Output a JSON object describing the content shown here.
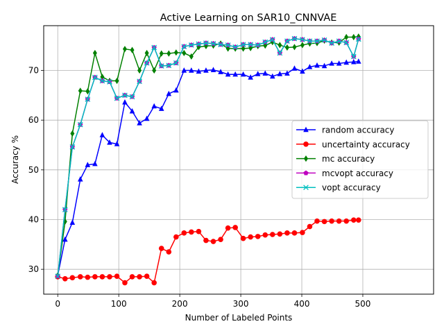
{
  "chart_data": {
    "type": "line",
    "title": "Active Learning on SAR10_CNNVAE",
    "xlabel": "Number of Labeled Points",
    "ylabel": "Accuracy %",
    "xlim": [
      -23,
      616
    ],
    "ylim": [
      25,
      79
    ],
    "xticks": [
      0,
      100,
      200,
      300,
      400,
      500
    ],
    "yticks": [
      30,
      40,
      50,
      60,
      70
    ],
    "grid": true,
    "legend_position": "center-right",
    "x": [
      0,
      12,
      24,
      37,
      49,
      61,
      73,
      85,
      97,
      110,
      122,
      134,
      146,
      158,
      170,
      182,
      194,
      207,
      219,
      231,
      243,
      255,
      267,
      279,
      291,
      304,
      316,
      328,
      340,
      352,
      364,
      376,
      388,
      401,
      413,
      425,
      437,
      449,
      461,
      473,
      485,
      493
    ],
    "series": [
      {
        "name": "random accuracy",
        "color": "#0000ff",
        "marker": "triangle",
        "values": [
          28.8,
          36.0,
          39.4,
          48.1,
          51.0,
          51.2,
          57.0,
          55.5,
          55.2,
          63.6,
          61.8,
          59.4,
          60.3,
          62.8,
          62.3,
          65.3,
          66.0,
          70.0,
          70.0,
          69.8,
          70.0,
          70.1,
          69.7,
          69.2,
          69.2,
          69.2,
          68.6,
          69.3,
          69.4,
          68.8,
          69.3,
          69.4,
          70.4,
          69.8,
          70.7,
          71.0,
          70.9,
          71.4,
          71.4,
          71.6,
          71.7,
          71.8
        ]
      },
      {
        "name": "uncertainty accuracy",
        "color": "#ff0000",
        "marker": "circle",
        "values": [
          28.5,
          28.1,
          28.3,
          28.5,
          28.4,
          28.5,
          28.5,
          28.5,
          28.6,
          27.3,
          28.5,
          28.5,
          28.6,
          27.3,
          34.2,
          33.5,
          36.5,
          37.3,
          37.5,
          37.6,
          35.8,
          35.6,
          36.0,
          38.3,
          38.4,
          36.2,
          36.5,
          36.6,
          36.9,
          37.0,
          37.1,
          37.3,
          37.3,
          37.4,
          38.6,
          39.7,
          39.6,
          39.7,
          39.7,
          39.7,
          39.9,
          39.9
        ]
      },
      {
        "name": "mc accuracy",
        "color": "#008000",
        "marker": "diamond",
        "values": [
          28.8,
          39.6,
          57.3,
          65.9,
          65.8,
          73.5,
          68.7,
          67.9,
          67.9,
          74.3,
          74.1,
          70.0,
          73.5,
          70.0,
          73.4,
          73.4,
          73.6,
          73.5,
          72.8,
          74.7,
          74.9,
          75.0,
          75.4,
          74.4,
          74.4,
          74.4,
          74.5,
          74.9,
          75.0,
          75.7,
          75.1,
          74.6,
          74.7,
          75.1,
          75.4,
          75.5,
          76.0,
          75.6,
          75.6,
          76.7,
          76.7,
          76.8
        ]
      },
      {
        "name": "mcvopt accuracy",
        "color": "#bf00bf",
        "marker": "pentagon",
        "values": [
          28.6,
          42.0,
          54.6,
          59.1,
          64.2,
          68.6,
          67.9,
          67.7,
          64.4,
          65.0,
          64.7,
          67.8,
          71.5,
          74.6,
          70.9,
          71.0,
          71.5,
          74.8,
          75.1,
          75.3,
          75.5,
          75.4,
          75.2,
          75.1,
          74.7,
          75.2,
          75.2,
          75.1,
          75.7,
          76.2,
          73.5,
          75.9,
          76.4,
          76.2,
          75.9,
          75.9,
          76.1,
          75.5,
          75.9,
          75.6,
          72.8,
          76.3
        ]
      },
      {
        "name": "vopt accuracy",
        "color": "#00bfbf",
        "marker": "x",
        "values": [
          28.6,
          42.0,
          54.6,
          59.1,
          64.2,
          68.6,
          67.9,
          67.7,
          64.4,
          65.0,
          64.7,
          67.8,
          71.5,
          74.6,
          70.9,
          71.0,
          71.5,
          74.8,
          75.1,
          75.3,
          75.5,
          75.4,
          75.2,
          75.1,
          74.7,
          75.2,
          75.2,
          75.1,
          75.7,
          76.2,
          73.5,
          75.9,
          76.4,
          76.2,
          75.9,
          75.9,
          76.1,
          75.5,
          75.9,
          75.6,
          72.8,
          76.3
        ]
      }
    ]
  }
}
